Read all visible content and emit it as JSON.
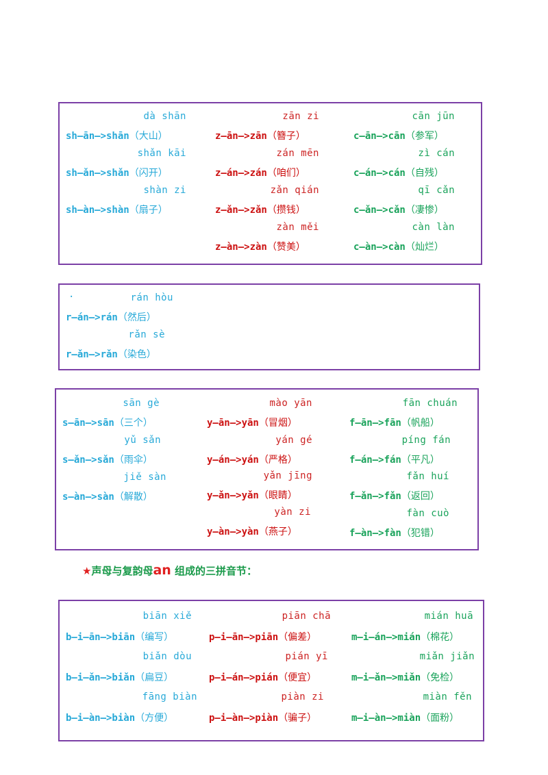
{
  "colors": {
    "blue": "#27a9d8",
    "red": "#cc1111",
    "green": "#1aa35b",
    "border": "#7b3fa6"
  },
  "section1": {
    "col1": [
      {
        "pinyin": "dà shān",
        "line": "sh—ān—>shān",
        "word": "（大山）"
      },
      {
        "pinyin": "shǎn kāi",
        "line": "sh—ǎn—>shǎn",
        "word": "（闪开）"
      },
      {
        "pinyin": "shàn zi",
        "line": "sh—àn—>shàn",
        "word": "（扇子）"
      }
    ],
    "col2": [
      {
        "pinyin": "zān zi",
        "line": "z—ān—>zān",
        "word": "（簪子）"
      },
      {
        "pinyin": "zán mēn",
        "line": "z—án—>zán",
        "word": "（咱们）"
      },
      {
        "pinyin": "zǎn qián",
        "line": "z—ǎn—>zǎn",
        "word": "（攒钱）"
      },
      {
        "pinyin": "zàn měi",
        "line": "z—àn—>zàn",
        "word": "（赞美）"
      }
    ],
    "col3": [
      {
        "pinyin": "cān jūn",
        "line": "c—ān—>cān",
        "word": "（参军）"
      },
      {
        "pinyin": "zì cán",
        "line": "c—án—>cán",
        "word": "（自残）"
      },
      {
        "pinyin": "qī cǎn",
        "line": "c—ǎn—>cǎn",
        "word": "（凄惨）"
      },
      {
        "pinyin": "càn làn",
        "line": "c—àn—>càn",
        "word": "（灿烂）"
      }
    ]
  },
  "section2": {
    "dot": "·",
    "col1": [
      {
        "pinyin": "rán hòu",
        "line": "r—án—>rán",
        "word": "（然后）"
      },
      {
        "pinyin": "rǎn sè",
        "line": "r—ǎn—>rǎn",
        "word": "（染色）"
      }
    ]
  },
  "section3": {
    "col1": [
      {
        "pinyin": "sān gè",
        "line": "s—ān—>sān",
        "word": "（三个）"
      },
      {
        "pinyin": "yǔ sǎn",
        "line": "s—ǎn—>sǎn",
        "word": "（雨伞）"
      },
      {
        "pinyin": "jiě sàn",
        "line": "s—àn—>sàn",
        "word": "（解散）"
      }
    ],
    "col2": [
      {
        "pinyin": "mào yān",
        "line": "y—ān—>yān",
        "word": "（冒烟）"
      },
      {
        "pinyin": "yán gé",
        "line": "y—án—>yán",
        "word": "（严格）"
      },
      {
        "pinyin": "yǎn jīng",
        "line": "y—ǎn—>yǎn",
        "word": "（眼睛）"
      },
      {
        "pinyin": "yàn zi",
        "line": "y—àn—>yàn",
        "word": "（燕子）"
      }
    ],
    "col3": [
      {
        "pinyin": "fān chuán",
        "line": "f—ān—>fān",
        "word": "（帆船）"
      },
      {
        "pinyin": "píng fán",
        "line": "f—án—>fán",
        "word": "（平凡）"
      },
      {
        "pinyin": "fǎn huí",
        "line": "f—ǎn—>fǎn",
        "word": "（返回）"
      },
      {
        "pinyin": "fàn cuò",
        "line": "f—àn—>fàn",
        "word": "（犯错）"
      }
    ]
  },
  "heading": {
    "star": "★",
    "before": "声母与复韵母",
    "an": "an",
    "after": " 组成的三拼音节："
  },
  "section4": {
    "col1": [
      {
        "pinyin": "biān xiě",
        "line": "b—i—ān—>biān",
        "word": "（编写）"
      },
      {
        "pinyin": "biǎn dòu",
        "line": "b—i—ǎn—>biǎn",
        "word": "（扁豆）"
      },
      {
        "pinyin": "fāng biàn",
        "line": "b—i—àn—>biàn",
        "word": "（方便）"
      }
    ],
    "col2": [
      {
        "pinyin": "piān chā",
        "line": "p—i—ān—>piān",
        "word": "（偏差）"
      },
      {
        "pinyin": "pián yī",
        "line": "p—i—án—>pián",
        "word": "（便宜）"
      },
      {
        "pinyin": "piàn zi",
        "line": "p—i—àn—>piàn",
        "word": "（骗子）"
      }
    ],
    "col3": [
      {
        "pinyin": "mián huā",
        "line": "m—i—án—>mián",
        "word": "（棉花）"
      },
      {
        "pinyin": "miǎn jiǎn",
        "line": "m—i—ǎn—>miǎn",
        "word": "（免检）"
      },
      {
        "pinyin": "miàn fěn",
        "line": "m—i—àn—>miàn",
        "word": "（面粉）"
      }
    ]
  }
}
